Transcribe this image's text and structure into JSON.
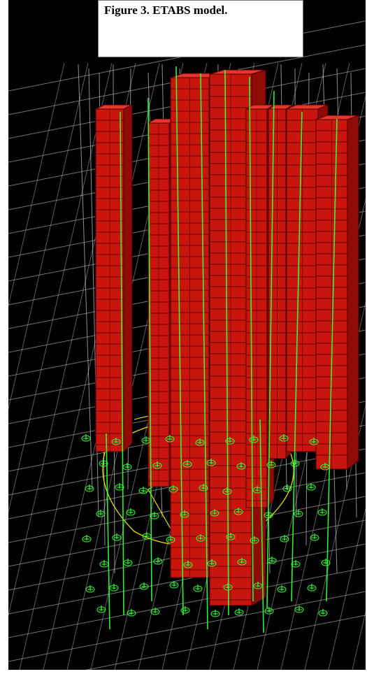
{
  "caption": {
    "text": "Figure 3. ETABS model."
  },
  "model_view": {
    "icon": "etabs-3d-building-model",
    "colors": {
      "background": "#000000",
      "grid": "#cfcfcf",
      "wall": "#c8160f",
      "wall_edge": "#4a0000",
      "column": "#33ff33",
      "slab_edge": "#e8e000",
      "support": "#33ff33"
    }
  }
}
